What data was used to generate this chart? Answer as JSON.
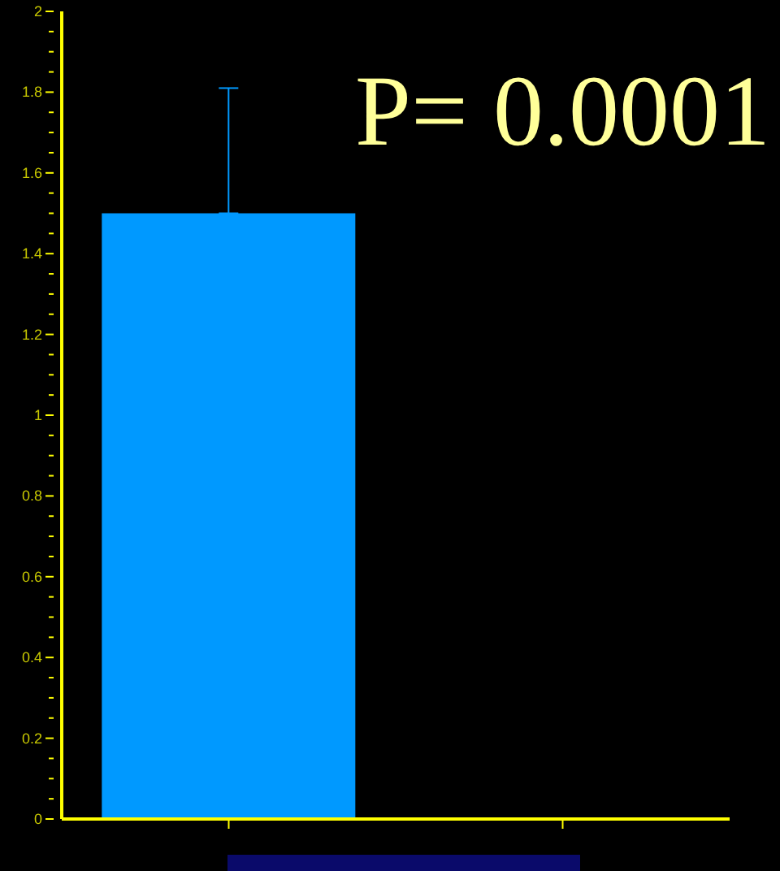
{
  "chart_data": {
    "type": "bar",
    "categories": [
      null,
      null
    ],
    "values": [
      1.5,
      null
    ],
    "color": "#0099ff",
    "errors": [
      [
        1.5,
        1.81
      ],
      null
    ],
    "ylim": [
      0,
      2
    ],
    "yticks": [
      0,
      {
        "value": 0.05,
        "label": null
      },
      {
        "value": 0.1,
        "label": null
      },
      {
        "value": 0.15,
        "label": null
      },
      0.2,
      {
        "value": 0.25,
        "label": null
      },
      {
        "value": 0.3,
        "label": null
      },
      {
        "value": 0.35,
        "label": null
      },
      0.4,
      {
        "value": 0.45,
        "label": null
      },
      {
        "value": 0.5,
        "label": null
      },
      {
        "value": 0.55,
        "label": null
      },
      0.6,
      {
        "value": 0.65,
        "label": null
      },
      {
        "value": 0.7,
        "label": null
      },
      {
        "value": 0.75,
        "label": null
      },
      0.8,
      {
        "value": 0.85,
        "label": null
      },
      {
        "value": 0.9,
        "label": null
      },
      {
        "value": 0.95,
        "label": null
      },
      1,
      {
        "value": 1.05,
        "label": null
      },
      {
        "value": 1.1,
        "label": null
      },
      {
        "value": 1.15,
        "label": null
      },
      1.2,
      {
        "value": 1.25,
        "label": null
      },
      {
        "value": 1.3,
        "label": null
      },
      {
        "value": 1.35,
        "label": null
      },
      1.4,
      {
        "value": 1.45,
        "label": null
      },
      {
        "value": 1.5,
        "label": null
      },
      {
        "value": 1.55,
        "label": null
      },
      1.6,
      {
        "value": 1.65,
        "label": null
      },
      {
        "value": 1.7,
        "label": null
      },
      {
        "value": 1.75,
        "label": null
      },
      1.8,
      {
        "value": 1.85,
        "label": null
      },
      {
        "value": 1.9,
        "label": null
      },
      {
        "value": 1.95,
        "label": null
      },
      2
    ],
    "tick_labels": "y",
    "annotations": [
      "P= 0.0001"
    ]
  }
}
